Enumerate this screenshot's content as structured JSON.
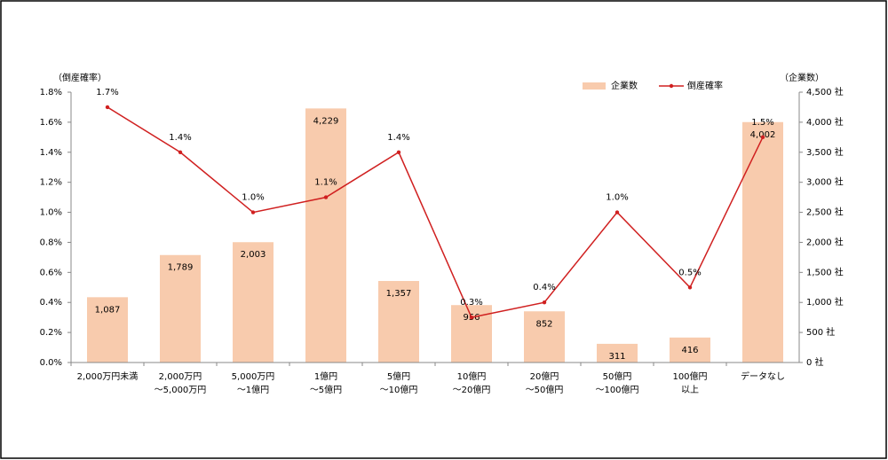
{
  "chart_data": {
    "type": "bar_line",
    "categories": [
      [
        "2,000万円未満"
      ],
      [
        "2,000万円",
        "～5,000万円"
      ],
      [
        "5,000万円",
        "～1億円"
      ],
      [
        "1億円",
        "～5億円"
      ],
      [
        "5億円",
        "～10億円"
      ],
      [
        "10億円",
        "～20億円"
      ],
      [
        "20億円",
        "～50億円"
      ],
      [
        "50億円",
        "～100億円"
      ],
      [
        "100億円",
        "以上"
      ],
      [
        "データなし"
      ]
    ],
    "y_label": "（倒産確率）",
    "y2_label": "（企業数）",
    "ylim": [
      0,
      1.8
    ],
    "yticks": [
      {
        "value": 0,
        "label": "0.0%"
      },
      {
        "value": 0.2,
        "label": "0.2%"
      },
      {
        "value": 0.4,
        "label": "0.4%"
      },
      {
        "value": 0.6,
        "label": "0.6%"
      },
      {
        "value": 0.8,
        "label": "0.8%"
      },
      {
        "value": 1.0,
        "label": "1.0%"
      },
      {
        "value": 1.2,
        "label": "1.2%"
      },
      {
        "value": 1.4,
        "label": "1.4%"
      },
      {
        "value": 1.6,
        "label": "1.6%"
      },
      {
        "value": 1.8,
        "label": "1.8%"
      }
    ],
    "y2lim": [
      0,
      4500
    ],
    "y2ticks": [
      {
        "value": 0,
        "label": "0 社"
      },
      {
        "value": 500,
        "label": "500 社"
      },
      {
        "value": 1000,
        "label": "1,000 社"
      },
      {
        "value": 1500,
        "label": "1,500 社"
      },
      {
        "value": 2000,
        "label": "2,000 社"
      },
      {
        "value": 2500,
        "label": "2,500 社"
      },
      {
        "value": 3000,
        "label": "3,000 社"
      },
      {
        "value": 3500,
        "label": "3,500 社"
      },
      {
        "value": 4000,
        "label": "4,000 社"
      },
      {
        "value": 4500,
        "label": "4,500 社"
      }
    ],
    "series": [
      {
        "name": "企業数",
        "type": "bar",
        "axis": "y2",
        "color": "#f8cbad",
        "values": [
          1087,
          1789,
          2003,
          4229,
          1357,
          956,
          852,
          311,
          416,
          4002
        ],
        "value_labels": [
          "1,087",
          "1,789",
          "2,003",
          "4,229",
          "1,357",
          "956",
          "852",
          "311",
          "416",
          "4,002"
        ]
      },
      {
        "name": "倒産確率",
        "type": "line",
        "axis": "y",
        "color": "#d02020",
        "values": [
          1.7,
          1.4,
          1.0,
          1.1,
          1.4,
          0.3,
          0.4,
          1.0,
          0.5,
          1.5
        ],
        "value_labels": [
          "1.7%",
          "1.4%",
          "1.0%",
          "1.1%",
          "1.4%",
          "0.3%",
          "0.4%",
          "1.0%",
          "0.5%",
          "1.5%"
        ]
      }
    ]
  }
}
